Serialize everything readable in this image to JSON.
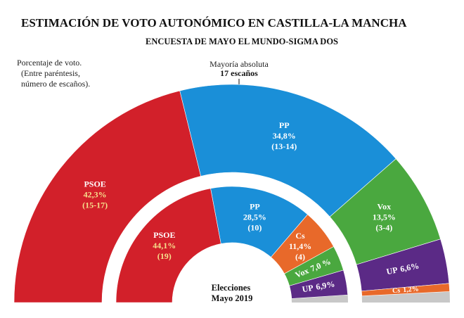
{
  "chart_data": {
    "type": "semi-donut",
    "title": "ESTIMACIÓN DE VOTO AUTONÓMICO EN CASTILLA-LA MANCHA",
    "subtitle": "ENCUESTA DE MAYO EL MUNDO-SIGMA DOS",
    "note": [
      "Porcentaje de voto.",
      "(Entre paréntesis,",
      "número de escaños)."
    ],
    "majority_label": "Mayoría absoluta",
    "majority_value": "17 escaños",
    "center_label": [
      "Elecciones",
      "Mayo 2019"
    ],
    "rings": [
      {
        "categories": [
          "PSOE",
          "PP",
          "Vox",
          "UP",
          "Cs"
        ],
        "values": [
          42.3,
          34.8,
          13.5,
          6.6,
          1.2
        ],
        "value_labels": [
          "42,3%",
          "34,8%",
          "13,5%",
          "6,6%",
          "1,2%"
        ],
        "seats": [
          "(15-17)",
          "(13-14)",
          "(3-4)",
          null,
          null
        ],
        "colors": [
          "#d2202a",
          "#1a8fd8",
          "#4aa83f",
          "#5b2a86",
          "#e8692a"
        ]
      },
      {
        "categories": [
          "PSOE",
          "PP",
          "Cs",
          "Vox",
          "UP"
        ],
        "values": [
          44.1,
          28.5,
          11.4,
          7.0,
          6.9
        ],
        "value_labels": [
          "44,1%",
          "28,5%",
          "11,4%",
          "7,0 %",
          "6,9%"
        ],
        "seats": [
          "(19)",
          "(10)",
          "(4)",
          null,
          null
        ],
        "colors": [
          "#d2202a",
          "#1a8fd8",
          "#e8692a",
          "#4aa83f",
          "#5b2a86"
        ]
      }
    ]
  }
}
